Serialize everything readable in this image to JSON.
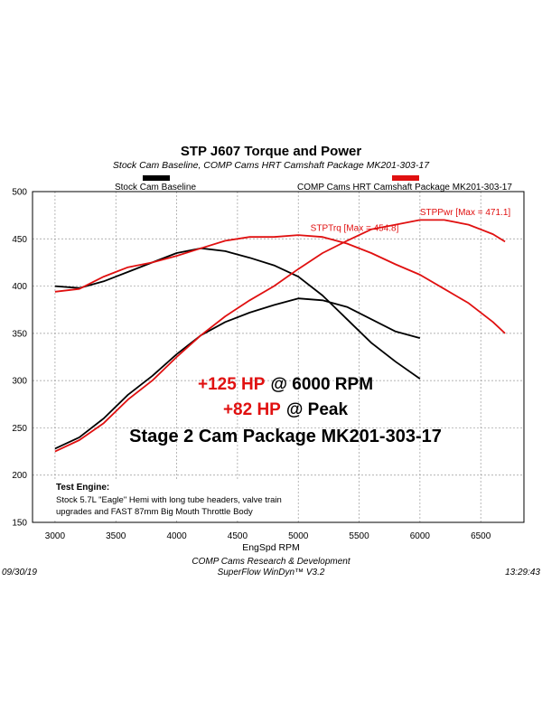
{
  "chart_data": {
    "type": "line",
    "title": "STP J607 Torque and Power",
    "subtitle": "Stock Cam Baseline, COMP Cams HRT Camshaft Package MK201-303-17",
    "xlabel": "EngSpd RPM",
    "x": [
      3000,
      3200,
      3400,
      3600,
      3800,
      4000,
      4200,
      4400,
      4600,
      4800,
      5000,
      5200,
      5400,
      5600,
      5800,
      6000,
      6200,
      6400,
      6600,
      6700
    ],
    "xlim": [
      2815,
      6855
    ],
    "xticks": [
      3000,
      3500,
      4000,
      4500,
      5000,
      5500,
      6000,
      6500
    ],
    "ylim": [
      150,
      500
    ],
    "yticks": [
      150,
      200,
      250,
      300,
      350,
      400,
      450,
      500
    ],
    "grid": true,
    "series": [
      {
        "name": "Stock Cam Baseline",
        "color": "#000000",
        "torque": [
          400,
          398,
          405,
          415,
          425,
          435,
          440,
          437,
          430,
          422,
          410,
          390,
          365,
          340,
          320,
          302,
          null,
          null,
          null,
          null
        ],
        "power": [
          228,
          240,
          260,
          285,
          305,
          328,
          348,
          362,
          372,
          380,
          387,
          385,
          378,
          365,
          352,
          345,
          null,
          null,
          null,
          null
        ]
      },
      {
        "name": "COMP Cams HRT Camshaft Package MK201-303-17",
        "color": "#e01010",
        "torque": [
          394,
          397,
          410,
          420,
          425,
          432,
          440,
          448,
          452,
          452,
          454,
          452,
          445,
          435,
          423,
          412,
          397,
          382,
          362,
          350
        ],
        "power": [
          225,
          237,
          255,
          280,
          300,
          325,
          348,
          368,
          385,
          400,
          418,
          435,
          448,
          460,
          465,
          470,
          470,
          465,
          455,
          447
        ]
      }
    ],
    "annotations": [
      {
        "text": "STPTrq [Max = 454.8]",
        "x": 5100,
        "y": 454.8,
        "color": "#e01010"
      },
      {
        "text": "STPPwr [Max = 471.1]",
        "x": 6000,
        "y": 471.1,
        "color": "#e01010"
      }
    ],
    "callout": [
      [
        {
          "text": "+125 HP",
          "color": "#e01010"
        },
        {
          "text": "@ 6000 RPM",
          "color": "#000000"
        }
      ],
      [
        {
          "text": "+82 HP",
          "color": "#e01010"
        },
        {
          "text": "@ Peak",
          "color": "#000000"
        }
      ],
      [
        {
          "text": "Stage 2 Cam Package MK201-303-17",
          "color": "#000000"
        }
      ]
    ],
    "test_engine": {
      "title": "Test Engine:",
      "lines": [
        "Stock 5.7L \"Eagle\" Hemi with long tube headers, valve train",
        "upgrades and FAST 87mm Big Mouth Throttle Body"
      ]
    },
    "footer": {
      "date": "09/30/19",
      "lab": "COMP Cams Research & Development",
      "software": "SuperFlow WinDyn™ V3.2",
      "time": "13:29:43"
    }
  }
}
